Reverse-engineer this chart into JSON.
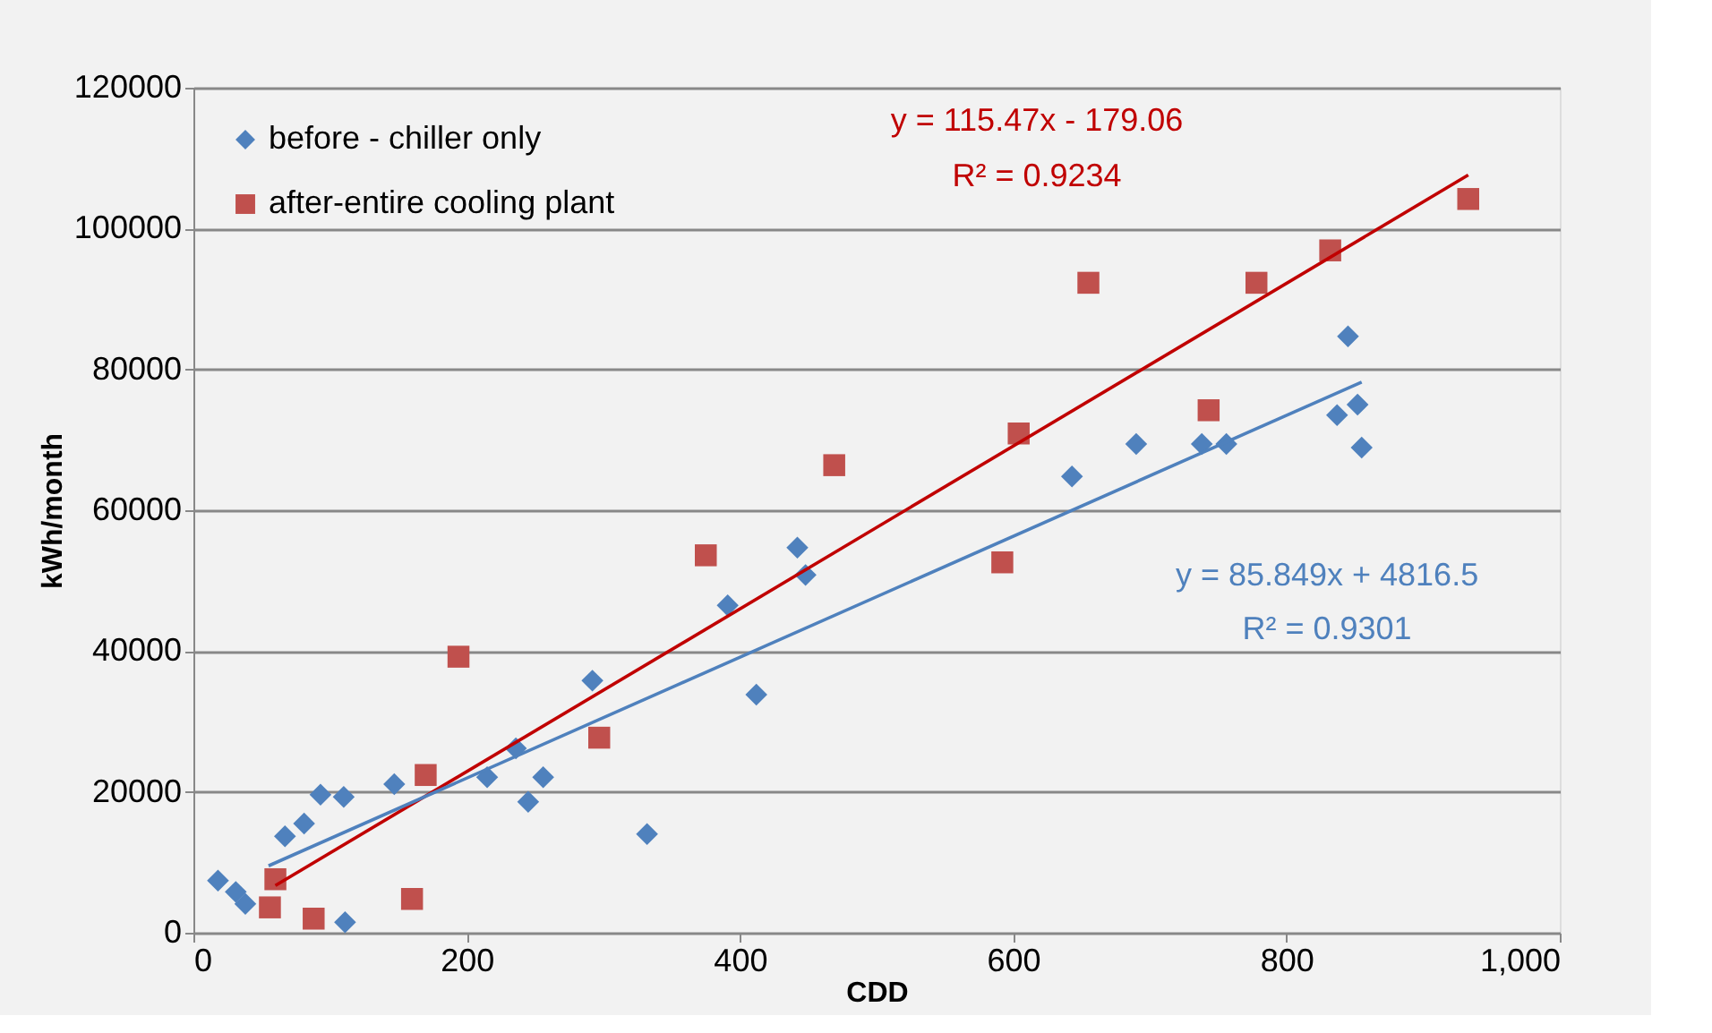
{
  "chart_data": {
    "type": "scatter",
    "xlabel": "CDD",
    "ylabel": "kWh/month",
    "xlim": [
      0,
      1000
    ],
    "xticks": [
      0,
      200,
      400,
      600,
      800,
      {
        "value": 1000,
        "label": "1,000"
      }
    ],
    "ylim": [
      0,
      120000
    ],
    "yticks": [
      0,
      20000,
      40000,
      60000,
      80000,
      100000,
      120000
    ],
    "grid": "y",
    "legend": "top left",
    "series": [
      {
        "name": "before - chiller only",
        "color": "#4f81bd",
        "marker": "diamond",
        "x": [
          18,
          31,
          38,
          67,
          81,
          93,
          110,
          111,
          147,
          215,
          236,
          245,
          256,
          292,
          332,
          391,
          412,
          442,
          448,
          643,
          690,
          738,
          756,
          837,
          845,
          852,
          855
        ],
        "values": [
          7400,
          5800,
          4100,
          13700,
          15500,
          19600,
          19300,
          1500,
          21100,
          22100,
          26200,
          18600,
          22100,
          35800,
          14000,
          46500,
          33800,
          54700,
          50800,
          64800,
          69400,
          69400,
          69400,
          73500,
          84700,
          75000,
          68900
        ]
      },
      {
        "name": "after-entire cooling plant",
        "color": "#c0504d",
        "marker": "square",
        "x": [
          56,
          60,
          88,
          160,
          170,
          194,
          297,
          375,
          469,
          592,
          604,
          655,
          743,
          778,
          832,
          933
        ],
        "values": [
          3600,
          7600,
          2000,
          4800,
          22400,
          39200,
          27700,
          53600,
          66400,
          52600,
          70900,
          92300,
          74200,
          92300,
          96900,
          104200
        ]
      },
      {
        "type": "line",
        "color": "#c00000",
        "x": [
          60,
          933
        ],
        "values": [
          6700,
          107600
        ]
      },
      {
        "type": "line",
        "color": "#4f81bd",
        "x": [
          55,
          855
        ],
        "values": [
          9500,
          78200
        ]
      }
    ],
    "annotations": [
      "y = 115.47x - 179.06",
      "R² = 0.9234",
      "y = 85.849x + 4816.5",
      "R² = 0.9301"
    ]
  }
}
